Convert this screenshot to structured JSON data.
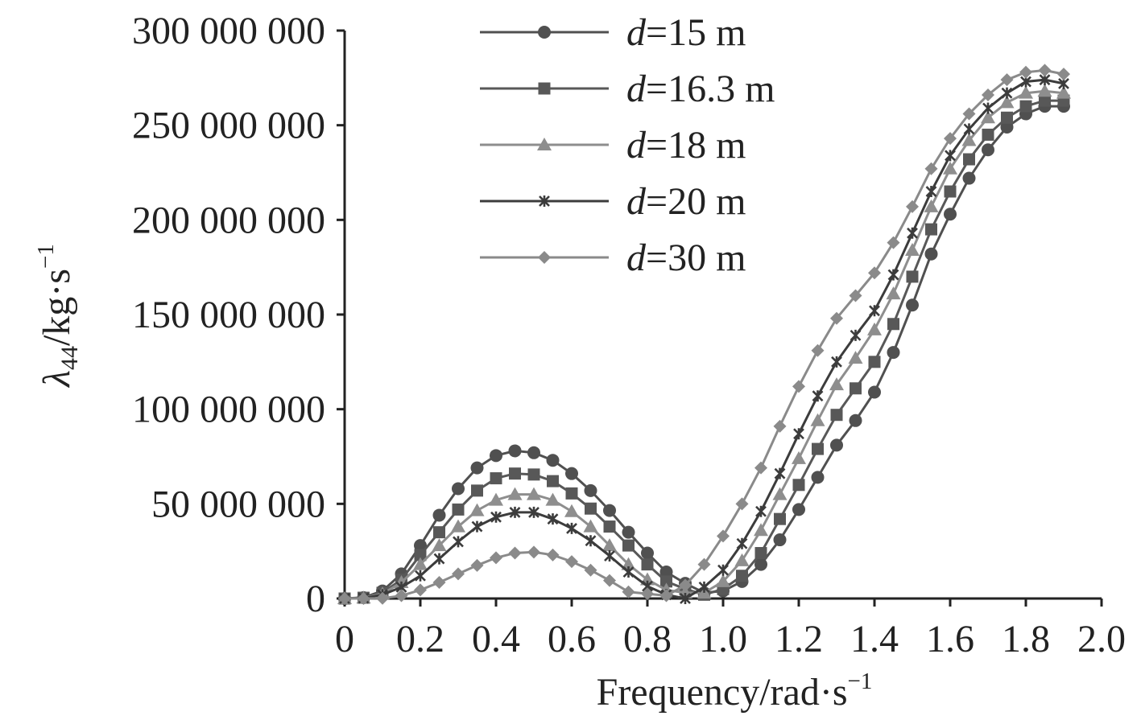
{
  "chart_data": {
    "type": "line",
    "title": "",
    "xlabel": "Frequency/rad·s",
    "xlabel_sup": "−1",
    "ylabel_main": "λ",
    "ylabel_sub": "44",
    "ylabel_unit": "/kg·s",
    "ylabel_sup": "−1",
    "xlim": [
      0,
      2.0
    ],
    "ylim": [
      0,
      300000000
    ],
    "x_ticks": [
      0,
      0.2,
      0.4,
      0.6,
      0.8,
      1.0,
      1.2,
      1.4,
      1.6,
      1.8,
      2.0
    ],
    "x_tick_labels": [
      "0",
      "0.2",
      "0.4",
      "0.6",
      "0.8",
      "1.0",
      "1.2",
      "1.4",
      "1.6",
      "1.8",
      "2.0"
    ],
    "y_ticks": [
      0,
      50000000,
      100000000,
      150000000,
      200000000,
      250000000,
      300000000
    ],
    "y_tick_labels": [
      "0",
      "50 000 000",
      "100 000 000",
      "150 000 000",
      "200 000 000",
      "250 000 000",
      "300 000 000"
    ],
    "grid": false,
    "legend_position": "top-center",
    "x": [
      0,
      0.05,
      0.1,
      0.15,
      0.2,
      0.25,
      0.3,
      0.35,
      0.4,
      0.45,
      0.5,
      0.55,
      0.6,
      0.65,
      0.7,
      0.75,
      0.8,
      0.85,
      0.9,
      0.95,
      1.0,
      1.05,
      1.1,
      1.15,
      1.2,
      1.25,
      1.3,
      1.35,
      1.4,
      1.45,
      1.5,
      1.55,
      1.6,
      1.65,
      1.7,
      1.75,
      1.8,
      1.85,
      1.9
    ],
    "series": [
      {
        "name": "d=15 m",
        "label_italic": "d",
        "label_rest": "=15 m",
        "color": "#505050",
        "marker": "circle",
        "values": [
          0,
          500000,
          4000000,
          13000000,
          28000000,
          44000000,
          58000000,
          69000000,
          75500000,
          78000000,
          77000000,
          73000000,
          66000000,
          57000000,
          46500000,
          35000000,
          24000000,
          14000000,
          8000000,
          3000000,
          4000000,
          9000000,
          18000000,
          31000000,
          47000000,
          64000000,
          81000000,
          94000000,
          109000000,
          130000000,
          155000000,
          182000000,
          203000000,
          222000000,
          237000000,
          249000000,
          256000000,
          260000000,
          260000000
        ]
      },
      {
        "name": "d=16.3 m",
        "label_italic": "d",
        "label_rest": "=16.3 m",
        "color": "#585858",
        "marker": "square",
        "values": [
          0,
          400000,
          3000000,
          10000000,
          23000000,
          35000000,
          47000000,
          57000000,
          63500000,
          66000000,
          65500000,
          62000000,
          55500000,
          47500000,
          38000000,
          28000000,
          18000000,
          9000000,
          5000000,
          2000000,
          5000000,
          12000000,
          24000000,
          42000000,
          60000000,
          79000000,
          97000000,
          111000000,
          125000000,
          145000000,
          170000000,
          195000000,
          215000000,
          232000000,
          245000000,
          254000000,
          260000000,
          263000000,
          263000000
        ]
      },
      {
        "name": "d=18 m",
        "label_italic": "d",
        "label_rest": "=18 m",
        "color": "#8e8e8e",
        "marker": "triangle",
        "values": [
          0,
          300000,
          2500000,
          8500000,
          18000000,
          28000000,
          38000000,
          46500000,
          52000000,
          55000000,
          55000000,
          52000000,
          46000000,
          38000000,
          28000000,
          18000000,
          10000000,
          4500000,
          3000000,
          3000000,
          9000000,
          20000000,
          36000000,
          55000000,
          74000000,
          94000000,
          113000000,
          127000000,
          142000000,
          161000000,
          184000000,
          207000000,
          227000000,
          242000000,
          254000000,
          262000000,
          267000000,
          268000000,
          267000000
        ]
      },
      {
        "name": "d=20 m",
        "label_italic": "d",
        "label_rest": "=20 m",
        "color": "#3c3c3c",
        "marker": "star",
        "values": [
          0,
          200000,
          2000000,
          6000000,
          12000000,
          21000000,
          30000000,
          38000000,
          43000000,
          45500000,
          45500000,
          42000000,
          37000000,
          30500000,
          22500000,
          14000000,
          6500000,
          2000000,
          0,
          6000000,
          15000000,
          29000000,
          46000000,
          66000000,
          87000000,
          107000000,
          125000000,
          139000000,
          152000000,
          171000000,
          193000000,
          215000000,
          234000000,
          248000000,
          259000000,
          267000000,
          273000000,
          274000000,
          272000000
        ]
      },
      {
        "name": "d=30 m",
        "label_italic": "d",
        "label_rest": "=30 m",
        "color": "#8a8a8a",
        "marker": "diamond",
        "values": [
          0,
          0,
          100000,
          1500000,
          4500000,
          8500000,
          13000000,
          17500000,
          21500000,
          24000000,
          24500000,
          23000000,
          19500000,
          15000000,
          9500000,
          3500000,
          2500000,
          1500000,
          7000000,
          18000000,
          33000000,
          50000000,
          69000000,
          91000000,
          112000000,
          131000000,
          148000000,
          160000000,
          172000000,
          188000000,
          207000000,
          227000000,
          243000000,
          256000000,
          266000000,
          274000000,
          278000000,
          279000000,
          277000000
        ]
      }
    ]
  }
}
